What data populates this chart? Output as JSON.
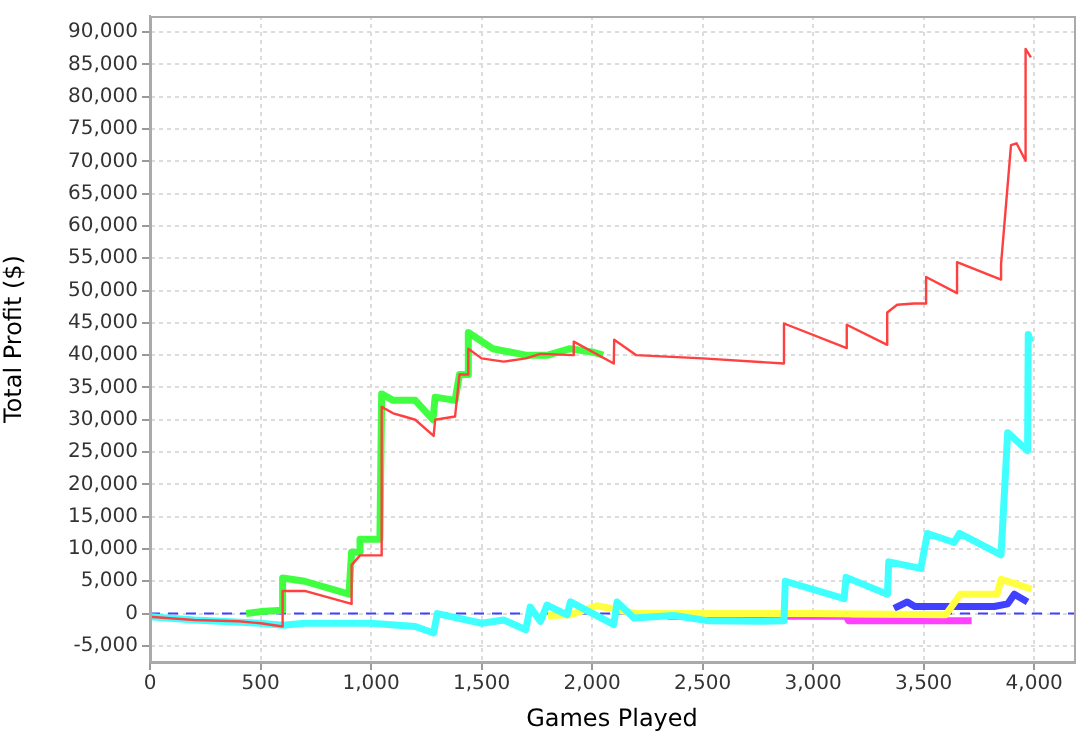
{
  "chart_data": {
    "type": "line",
    "xlabel": "Games Played",
    "ylabel": "Total Profit ($)",
    "xlim": [
      0,
      4180
    ],
    "ylim": [
      -7500,
      92500
    ],
    "xticks": [
      {
        "value": 0,
        "label": "0"
      },
      {
        "value": 500,
        "label": "500"
      },
      {
        "value": 1000,
        "label": "1,000"
      },
      {
        "value": 1500,
        "label": "1,500"
      },
      {
        "value": 2000,
        "label": "2,000"
      },
      {
        "value": 2500,
        "label": "2,500"
      },
      {
        "value": 3000,
        "label": "3,000"
      },
      {
        "value": 3500,
        "label": "3,500"
      },
      {
        "value": 4000,
        "label": "4,000"
      }
    ],
    "yticks": [
      {
        "value": -5000,
        "label": "-5,000"
      },
      {
        "value": 0,
        "label": "0"
      },
      {
        "value": 5000,
        "label": "5,000"
      },
      {
        "value": 10000,
        "label": "10,000"
      },
      {
        "value": 15000,
        "label": "15,000"
      },
      {
        "value": 20000,
        "label": "20,000"
      },
      {
        "value": 25000,
        "label": "25,000"
      },
      {
        "value": 30000,
        "label": "30,000"
      },
      {
        "value": 35000,
        "label": "35,000"
      },
      {
        "value": 40000,
        "label": "40,000"
      },
      {
        "value": 45000,
        "label": "45,000"
      },
      {
        "value": 50000,
        "label": "50,000"
      },
      {
        "value": 55000,
        "label": "55,000"
      },
      {
        "value": 60000,
        "label": "60,000"
      },
      {
        "value": 65000,
        "label": "65,000"
      },
      {
        "value": 70000,
        "label": "70,000"
      },
      {
        "value": 75000,
        "label": "75,000"
      },
      {
        "value": 80000,
        "label": "80,000"
      },
      {
        "value": 85000,
        "label": "85,000"
      },
      {
        "value": 90000,
        "label": "90,000"
      }
    ],
    "grid": true,
    "legend": false,
    "marker": "none",
    "line_style": "solid",
    "ref_lines": [
      {
        "axis": "y",
        "value": 0,
        "label": null,
        "color": "#4040ff",
        "line_style": "dashed"
      }
    ],
    "series": [
      {
        "color": "#ff4040",
        "x": [
          0,
          200,
          400,
          500,
          600,
          600,
          700,
          912,
          912,
          950,
          1048,
          1048,
          1100,
          1150,
          1200,
          1283,
          1290,
          1380,
          1400,
          1440,
          1440,
          1500,
          1600,
          1700,
          1766,
          1917,
          1917,
          2098,
          2100,
          2200,
          2500,
          2868,
          2868,
          3152,
          3152,
          3335,
          3335,
          3380,
          3457,
          3511,
          3511,
          3651,
          3651,
          3850,
          3850,
          3895,
          3920,
          3961,
          3961,
          3985
        ],
        "values": [
          -500,
          -1000,
          -1200,
          -1500,
          -2000,
          3500,
          3500,
          1500,
          7500,
          9000,
          9000,
          32000,
          31000,
          30500,
          30000,
          27500,
          30000,
          30500,
          37000,
          37000,
          41000,
          39500,
          39000,
          39500,
          40200,
          40000,
          42100,
          38700,
          42400,
          40000,
          39500,
          38700,
          44900,
          41100,
          44700,
          41600,
          46600,
          47800,
          48000,
          48000,
          52100,
          49600,
          54400,
          51700,
          54100,
          72500,
          72800,
          70100,
          87400,
          86100
        ]
      },
      {
        "color": "#40ff40",
        "x": [
          435,
          500,
          600,
          600,
          700,
          900,
          912,
          950,
          950,
          1040,
          1048,
          1100,
          1200,
          1280,
          1290,
          1380,
          1400,
          1440,
          1440,
          1550,
          1700,
          1800,
          1900,
          2000,
          2050
        ],
        "values": [
          0,
          300,
          500,
          5500,
          5000,
          3000,
          9500,
          9500,
          11500,
          11500,
          34000,
          33000,
          33000,
          30000,
          33500,
          33000,
          37000,
          37000,
          43500,
          41000,
          40000,
          40000,
          41000,
          40500,
          40000
        ]
      },
      {
        "color": "#40ffff",
        "x": [
          0,
          200,
          500,
          600,
          700,
          1000,
          1200,
          1283,
          1300,
          1500,
          1600,
          1700,
          1720,
          1766,
          1796,
          1887,
          1902,
          2098,
          2113,
          2189,
          2370,
          2520,
          2762,
          2868,
          2874,
          3140,
          3149,
          3336,
          3342,
          3487,
          3517,
          3638,
          3662,
          3850,
          3880,
          3970,
          3973,
          3985
        ],
        "values": [
          -500,
          -1000,
          -1500,
          -1800,
          -1500,
          -1500,
          -2000,
          -3000,
          0,
          -1500,
          -1000,
          -2500,
          1000,
          -1200,
          1300,
          -200,
          1800,
          -1700,
          1800,
          -700,
          -300,
          -1100,
          -1200,
          -1100,
          5000,
          2300,
          5600,
          3000,
          8000,
          7000,
          12400,
          11000,
          12400,
          9100,
          28000,
          25200,
          43200,
          42000
        ]
      },
      {
        "color": "#ffff40",
        "x": [
          1800,
          1900,
          2022,
          2200,
          2600,
          3000,
          3600,
          3666,
          3832,
          3850,
          3988
        ],
        "values": [
          -300,
          -200,
          1200,
          0,
          0,
          0,
          -200,
          3000,
          3000,
          5300,
          3800
        ]
      },
      {
        "color": "#ff40ff",
        "x": [
          2340,
          2700,
          3150,
          3160,
          3717
        ],
        "values": [
          -400,
          -400,
          -400,
          -1100,
          -1100
        ]
      },
      {
        "color": "#4040ff",
        "x": [
          3366,
          3426,
          3460,
          3819,
          3880,
          3910,
          3970
        ],
        "values": [
          800,
          1800,
          1100,
          1100,
          1500,
          3000,
          1800
        ]
      }
    ]
  }
}
